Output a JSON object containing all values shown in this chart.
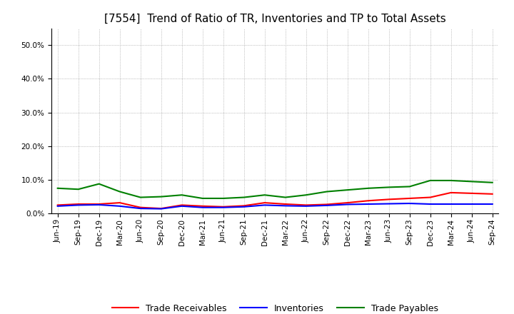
{
  "title": "[7554]  Trend of Ratio of TR, Inventories and TP to Total Assets",
  "x_labels": [
    "Jun-19",
    "Sep-19",
    "Dec-19",
    "Mar-20",
    "Jun-20",
    "Sep-20",
    "Dec-20",
    "Mar-21",
    "Jun-21",
    "Sep-21",
    "Dec-21",
    "Mar-22",
    "Jun-22",
    "Sep-22",
    "Dec-22",
    "Mar-23",
    "Jun-23",
    "Sep-23",
    "Dec-23",
    "Mar-24",
    "Jun-24",
    "Sep-24"
  ],
  "trade_receivables": [
    2.5,
    2.8,
    2.8,
    3.2,
    1.8,
    1.5,
    2.5,
    2.2,
    2.0,
    2.3,
    3.2,
    2.8,
    2.5,
    2.7,
    3.2,
    3.8,
    4.2,
    4.5,
    4.8,
    6.2,
    6.0,
    5.8
  ],
  "inventories": [
    2.2,
    2.5,
    2.6,
    2.2,
    1.5,
    1.4,
    2.2,
    1.8,
    1.8,
    2.0,
    2.5,
    2.3,
    2.2,
    2.4,
    2.7,
    2.8,
    2.9,
    3.0,
    2.8,
    2.8,
    2.8,
    2.8
  ],
  "trade_payables": [
    7.5,
    7.2,
    8.8,
    6.5,
    4.8,
    5.0,
    5.5,
    4.5,
    4.5,
    4.8,
    5.5,
    4.8,
    5.5,
    6.5,
    7.0,
    7.5,
    7.8,
    8.0,
    9.8,
    9.8,
    9.5,
    9.2
  ],
  "ylim": [
    0,
    55
  ],
  "yticks": [
    0,
    10,
    20,
    30,
    40,
    50
  ],
  "colors": {
    "trade_receivables": "#ff0000",
    "inventories": "#0000ff",
    "trade_payables": "#008000"
  },
  "legend_labels": [
    "Trade Receivables",
    "Inventories",
    "Trade Payables"
  ],
  "background_color": "#ffffff",
  "plot_background": "#ffffff",
  "grid_color": "#aaaaaa",
  "line_width": 1.5,
  "title_fontsize": 11,
  "tick_fontsize": 7.5,
  "legend_fontsize": 9
}
